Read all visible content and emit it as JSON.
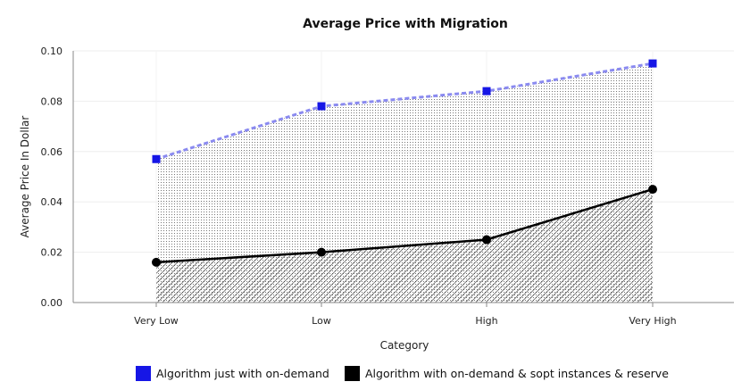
{
  "chart_data": {
    "type": "area",
    "title": "Average Price with Migration",
    "xlabel": "Category",
    "ylabel": "Average Price In Dollar",
    "categories": [
      "Very Low",
      "Low",
      "High",
      "Very High"
    ],
    "ylim": [
      0,
      0.1
    ],
    "yticks": [
      "0.00",
      "0.02",
      "0.04",
      "0.06",
      "0.08",
      "0.10"
    ],
    "grid": true,
    "legend_position": "bottom",
    "series": [
      {
        "name": "Algorithm just with on-demand",
        "values": [
          0.057,
          0.078,
          0.084,
          0.095
        ],
        "line_color": "#8a8af0",
        "marker_color": "#1616e6",
        "line_style": "dashed",
        "marker": "square",
        "fill": "dots"
      },
      {
        "name": "Algorithm with on-demand & sopt instances & reserve",
        "values": [
          0.016,
          0.02,
          0.025,
          0.045
        ],
        "line_color": "#000000",
        "marker_color": "#000000",
        "line_style": "solid",
        "marker": "circle",
        "fill": "diagonal-hatch"
      }
    ]
  }
}
